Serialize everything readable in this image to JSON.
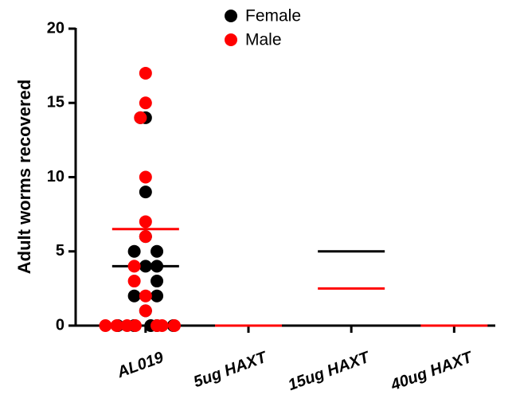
{
  "chart_data": {
    "type": "scatter",
    "y_label": "Adult worms recovered",
    "xlim": [
      -0.68,
      3.4
    ],
    "xticks": [
      {
        "value": 0,
        "label": "AL019"
      },
      {
        "value": 1,
        "label": "5ug HAXT"
      },
      {
        "value": 2,
        "label": "15ug HAXT"
      },
      {
        "value": 3,
        "label": "40ug HAXT"
      }
    ],
    "ylim": [
      0,
      20
    ],
    "yticks": [
      0,
      5,
      10,
      15,
      20
    ],
    "legend": "top",
    "series": [
      {
        "name": "Female",
        "color": "#000000",
        "x": [
          0,
          -0.11,
          0.11,
          0,
          0.11,
          -0.11,
          0.11,
          -0.27,
          0,
          0.11,
          0,
          0,
          -0.11,
          0.11,
          -0.11,
          -0.05,
          0.05,
          0.27
        ],
        "values": [
          14,
          5,
          5,
          4,
          3,
          2,
          2,
          0,
          1,
          0,
          9,
          6,
          0,
          4,
          0,
          14,
          0,
          0
        ],
        "medians": [
          4,
          0,
          5,
          0
        ]
      },
      {
        "name": "Male",
        "color": "#ff0000",
        "x": [
          0,
          0,
          0,
          0,
          -0.11,
          -0.1,
          0,
          0.28,
          0,
          -0.11,
          0,
          0.11,
          -0.05,
          -0.39,
          -0.28,
          -0.18,
          0.16
        ],
        "values": [
          17,
          15,
          7,
          6,
          3,
          0,
          2,
          0,
          10,
          4,
          1,
          0,
          14,
          0,
          0,
          0,
          0
        ],
        "medians": [
          6.5,
          0,
          2.5,
          0
        ]
      }
    ]
  }
}
